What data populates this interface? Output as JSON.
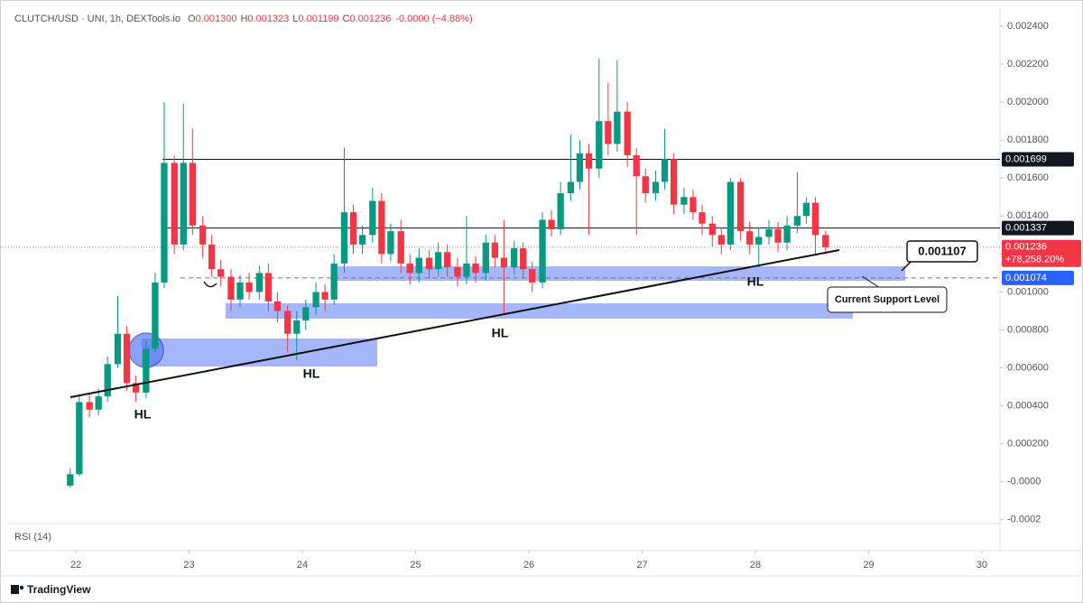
{
  "header": {
    "symbol": "CLUTCH/USD · UNI, 1h, DEXTools.io",
    "ohlc": [
      {
        "key": "O",
        "value": "0.001300"
      },
      {
        "key": "H",
        "value": "0.001323"
      },
      {
        "key": "L",
        "value": "0.001199"
      },
      {
        "key": "C",
        "value": "0.001236"
      }
    ],
    "change": "-0.0000 (−4.88%)"
  },
  "chart_data": {
    "type": "candlestick",
    "x": [
      21.95,
      22.03,
      22.12,
      22.2,
      22.28,
      22.37,
      22.45,
      22.53,
      22.62,
      22.7,
      22.78,
      22.87,
      22.95,
      23.03,
      23.12,
      23.2,
      23.28,
      23.37,
      23.45,
      23.53,
      23.62,
      23.7,
      23.78,
      23.87,
      23.95,
      24.03,
      24.12,
      24.2,
      24.28,
      24.37,
      24.45,
      24.53,
      24.62,
      24.7,
      24.78,
      24.87,
      24.95,
      25.03,
      25.12,
      25.2,
      25.28,
      25.37,
      25.45,
      25.53,
      25.62,
      25.7,
      25.78,
      25.87,
      25.95,
      26.03,
      26.12,
      26.2,
      26.28,
      26.37,
      26.45,
      26.53,
      26.62,
      26.7,
      26.78,
      26.87,
      26.95,
      27.03,
      27.12,
      27.2,
      27.28,
      27.37,
      27.45,
      27.53,
      27.62,
      27.7,
      27.78,
      27.87,
      27.95,
      28.03,
      28.12,
      28.2,
      28.28,
      28.37,
      28.45,
      28.53,
      28.62
    ],
    "open": [
      -2e-05,
      4e-05,
      0.00042,
      0.00038,
      0.00045,
      0.00062,
      0.00078,
      0.00052,
      0.00047,
      0.0007,
      0.00105,
      0.00168,
      0.00125,
      0.00168,
      0.00135,
      0.00125,
      0.00112,
      0.00108,
      0.00096,
      0.00105,
      0.001,
      0.0011,
      0.00095,
      0.0009,
      0.00078,
      0.00085,
      0.00092,
      0.001,
      0.00096,
      0.00115,
      0.00142,
      0.00125,
      0.0013,
      0.00148,
      0.0012,
      0.00132,
      0.00115,
      0.0011,
      0.00118,
      0.00112,
      0.00121,
      0.00113,
      0.00108,
      0.00115,
      0.0011,
      0.00126,
      0.00118,
      0.00113,
      0.00123,
      0.00112,
      0.00105,
      0.00138,
      0.00133,
      0.00152,
      0.00158,
      0.00173,
      0.00165,
      0.0019,
      0.00178,
      0.00195,
      0.00172,
      0.00161,
      0.00152,
      0.00158,
      0.0017,
      0.00146,
      0.0015,
      0.00142,
      0.00136,
      0.0013,
      0.00125,
      0.00158,
      0.00132,
      0.00125,
      0.00129,
      0.00133,
      0.00126,
      0.00135,
      0.0014,
      0.00147,
      0.0013
    ],
    "high": [
      7e-05,
      0.00045,
      0.00046,
      0.00049,
      0.00066,
      0.00098,
      0.00082,
      0.00056,
      0.00074,
      0.0011,
      0.002,
      0.00172,
      0.00199,
      0.00186,
      0.0014,
      0.0013,
      0.00117,
      0.00112,
      0.00109,
      0.0011,
      0.00114,
      0.00115,
      0.001,
      0.00093,
      0.0009,
      0.00096,
      0.00105,
      0.00104,
      0.0012,
      0.00176,
      0.00146,
      0.00135,
      0.00155,
      0.00152,
      0.00136,
      0.00138,
      0.0012,
      0.00123,
      0.00122,
      0.00126,
      0.00125,
      0.00118,
      0.0014,
      0.00119,
      0.0013,
      0.0013,
      0.00138,
      0.00127,
      0.00126,
      0.00116,
      0.00142,
      0.00143,
      0.00158,
      0.00183,
      0.0018,
      0.00178,
      0.00223,
      0.0021,
      0.00222,
      0.002,
      0.00176,
      0.00165,
      0.00164,
      0.00186,
      0.00173,
      0.00155,
      0.00154,
      0.00146,
      0.0014,
      0.00134,
      0.0016,
      0.0016,
      0.00137,
      0.00134,
      0.00138,
      0.00137,
      0.0014,
      0.00163,
      0.0015,
      0.0015,
      0.001323
    ],
    "low": [
      -3e-05,
      3e-05,
      0.00034,
      0.00035,
      0.00042,
      0.0006,
      0.00048,
      0.00042,
      0.00044,
      0.00068,
      0.00102,
      0.0012,
      0.00122,
      0.0013,
      0.00118,
      0.00108,
      0.00103,
      0.0009,
      0.00092,
      0.00096,
      0.00096,
      0.0009,
      0.00084,
      0.00068,
      0.00064,
      0.0008,
      0.00088,
      0.0009,
      0.00093,
      0.0011,
      0.0012,
      0.0012,
      0.00126,
      0.00115,
      0.00116,
      0.0011,
      0.00104,
      0.00105,
      0.00107,
      0.00108,
      0.00108,
      0.00103,
      0.00104,
      0.00105,
      0.00106,
      0.00113,
      0.00088,
      0.00109,
      0.00107,
      0.001,
      0.00102,
      0.00129,
      0.0013,
      0.00148,
      0.00154,
      0.0013,
      0.0016,
      0.00172,
      0.00174,
      0.00166,
      0.0013,
      0.00147,
      0.00148,
      0.00154,
      0.00141,
      0.00141,
      0.00138,
      0.0013,
      0.00124,
      0.0012,
      0.00122,
      0.00127,
      0.0012,
      0.00113,
      0.00125,
      0.00121,
      0.00122,
      0.00131,
      0.00136,
      0.00119,
      0.001199
    ],
    "close": [
      4e-05,
      0.00042,
      0.00038,
      0.00045,
      0.00062,
      0.00078,
      0.00052,
      0.00047,
      0.0007,
      0.00105,
      0.00168,
      0.00125,
      0.00168,
      0.00135,
      0.00125,
      0.00112,
      0.00108,
      0.00096,
      0.00105,
      0.001,
      0.0011,
      0.00095,
      0.0009,
      0.00078,
      0.00085,
      0.00092,
      0.001,
      0.00096,
      0.00115,
      0.00142,
      0.00125,
      0.0013,
      0.00148,
      0.0012,
      0.00132,
      0.00115,
      0.0011,
      0.00118,
      0.00112,
      0.00121,
      0.00113,
      0.00108,
      0.00115,
      0.0011,
      0.00126,
      0.00118,
      0.00113,
      0.00123,
      0.00112,
      0.00105,
      0.00138,
      0.00133,
      0.00152,
      0.00158,
      0.00173,
      0.00165,
      0.0019,
      0.00178,
      0.00195,
      0.00172,
      0.00161,
      0.00152,
      0.00158,
      0.0017,
      0.00146,
      0.0015,
      0.00142,
      0.00136,
      0.0013,
      0.00125,
      0.00158,
      0.00132,
      0.00125,
      0.00129,
      0.00133,
      0.00126,
      0.00135,
      0.0014,
      0.00147,
      0.0013,
      0.001236
    ],
    "up_color": "#089981",
    "down_color": "#f23645",
    "xlim": [
      21.33,
      30.16
    ],
    "xticks": [
      22,
      23,
      24,
      25,
      26,
      27,
      28,
      29,
      30
    ],
    "ylim": [
      -0.00022,
      0.0025
    ],
    "yticks": [
      {
        "value": 0.0024,
        "label": "0.002400"
      },
      {
        "value": 0.0022,
        "label": "0.002200"
      },
      {
        "value": 0.002,
        "label": "0.002000"
      },
      {
        "value": 0.0018,
        "label": "0.001800"
      },
      {
        "value": 0.0016,
        "label": "0.001600"
      },
      {
        "value": 0.0014,
        "label": "0.001400"
      },
      {
        "value": 0.0012,
        "label": "0.001200"
      },
      {
        "value": 0.001,
        "label": "0.001000"
      },
      {
        "value": 0.0008,
        "label": "0.000800"
      },
      {
        "value": 0.0006,
        "label": "0.000600"
      },
      {
        "value": 0.0004,
        "label": "0.000400"
      },
      {
        "value": 0.0002,
        "label": "0.000200"
      },
      {
        "value": 0,
        "label": "-0.0000"
      },
      {
        "value": -0.0002,
        "label": "-0.0002"
      }
    ],
    "grid": false,
    "price_lines": [
      0.001699,
      0.001337
    ],
    "last_price": 0.001236,
    "last_change_label": "+78,258.20%",
    "support_price": 0.001074,
    "callout": "0.001107",
    "support_label": "Current Support Level",
    "hl_labels": [
      "HL",
      "HL",
      "HL",
      "HL"
    ],
    "indicator": "RSI (14)"
  },
  "footer": {
    "brand": "TradingView"
  }
}
